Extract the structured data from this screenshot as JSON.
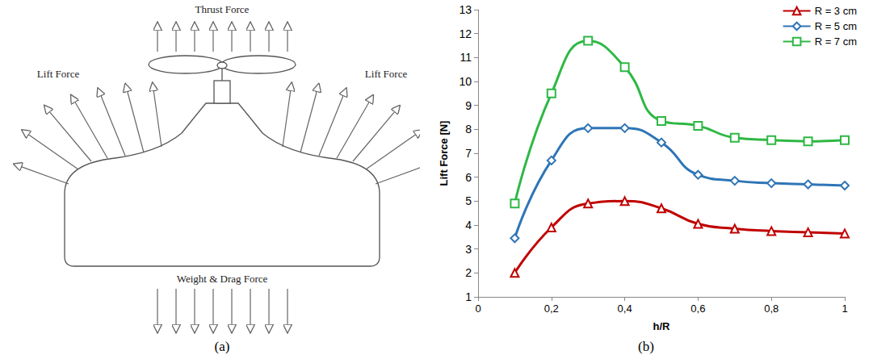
{
  "chart_data": {
    "type": "line",
    "x_label": "h/R",
    "y_label": "Lift Force [N]",
    "x": [
      0.1,
      0.2,
      0.3,
      0.4,
      0.5,
      0.6,
      0.7,
      0.8,
      0.9,
      1.0
    ],
    "series": [
      {
        "name": "R = 3 cm",
        "color": "#c00000",
        "marker": "triangle",
        "values": [
          2.0,
          3.9,
          4.9,
          5.0,
          4.7,
          4.05,
          3.85,
          3.75,
          3.7,
          3.65
        ]
      },
      {
        "name": "R = 5 cm",
        "color": "#2e75b6",
        "marker": "diamond",
        "values": [
          3.45,
          6.7,
          8.05,
          8.05,
          7.45,
          6.1,
          5.85,
          5.75,
          5.7,
          5.65
        ]
      },
      {
        "name": "R = 7 cm",
        "color": "#2eb844",
        "marker": "square",
        "values": [
          4.9,
          9.5,
          11.7,
          10.6,
          8.35,
          8.15,
          7.65,
          7.55,
          7.5,
          7.55
        ]
      }
    ],
    "line_style": "smooth",
    "xlim": [
      0,
      1
    ],
    "xticks": [
      0,
      {
        "value": 0.2,
        "label": "0,2"
      },
      {
        "value": 0.4,
        "label": "0,4"
      },
      {
        "value": 0.6,
        "label": "0,6"
      },
      {
        "value": 0.8,
        "label": "0,8"
      },
      1
    ],
    "ylim": [
      1,
      13
    ],
    "yticks": [
      1,
      2,
      3,
      4,
      5,
      6,
      7,
      8,
      9,
      10,
      11,
      12,
      13
    ],
    "grid": false,
    "legend": "upper right"
  },
  "diagram": {
    "thrust_label": "Thrust Force",
    "lift_label": "Lift Force",
    "weight_label": "Weight & Drag Force"
  },
  "panel_labels": [
    "(a)",
    "(b)"
  ]
}
